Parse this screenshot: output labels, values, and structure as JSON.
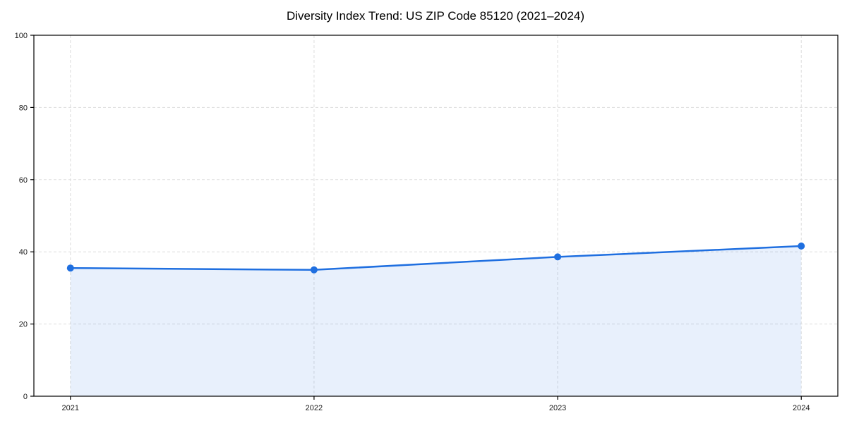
{
  "figure": {
    "background": "#ffffff"
  },
  "chart_data": {
    "type": "area",
    "title": "Diversity Index Trend: US ZIP Code 85120 (2021–2024)",
    "x": [
      2021,
      2022,
      2023,
      2024
    ],
    "categories": [
      "2021",
      "2022",
      "2023",
      "2024"
    ],
    "series": [
      {
        "name": "Diversity Index",
        "values": [
          35.5,
          35.0,
          38.6,
          41.6
        ]
      }
    ],
    "xlabel": "",
    "ylabel": "",
    "ylim": [
      0,
      100
    ],
    "yticks": [
      0,
      20,
      40,
      60,
      80,
      100
    ],
    "grid": true,
    "grid_style": "dashed",
    "grid_color": "#dddddd",
    "spine_color": "#000000",
    "tick_label_color": "#1a1a1a",
    "line_color": "#1f6fe0",
    "marker": "circle",
    "fill_color": "#1f6fe0",
    "fill_opacity": 0.1,
    "legend": "none"
  }
}
